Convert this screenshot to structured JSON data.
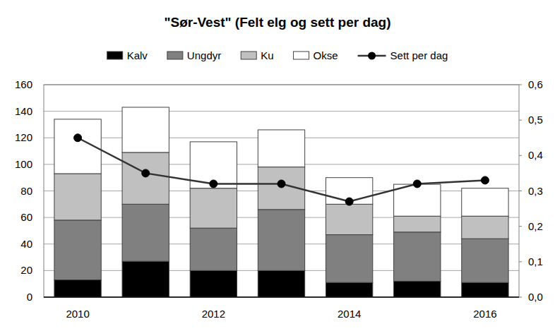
{
  "chart_data": {
    "type": "bar",
    "title": "\"Sør-Vest\" (Felt elg og sett per dag)",
    "stacked": true,
    "grid": true,
    "legend": "top",
    "categories": [
      "2010",
      null,
      "2012",
      null,
      "2014",
      null,
      "2016"
    ],
    "ylim": [
      0,
      160
    ],
    "yticks": [
      0,
      20,
      40,
      60,
      80,
      100,
      120,
      140,
      160
    ],
    "y2lim": [
      0,
      0.6
    ],
    "y2ticks": [
      {
        "value": 0,
        "label": "0,0"
      },
      {
        "value": 0.1,
        "label": "0,1"
      },
      {
        "value": 0.2,
        "label": "0,2"
      },
      {
        "value": 0.3,
        "label": "0,3"
      },
      {
        "value": 0.4,
        "label": "0,4"
      },
      {
        "value": 0.5,
        "label": "0,5"
      },
      {
        "value": 0.6,
        "label": "0,6"
      }
    ],
    "series": [
      {
        "name": "Kalv",
        "type": "bar",
        "color": "#000000",
        "values": [
          13,
          27,
          20,
          20,
          11,
          12,
          11
        ]
      },
      {
        "name": "Ungdyr",
        "type": "bar",
        "color": "#808080",
        "values": [
          45,
          43,
          32,
          46,
          36,
          37,
          33
        ]
      },
      {
        "name": "Ku",
        "type": "bar",
        "color": "#c0c0c0",
        "values": [
          35,
          39,
          30,
          32,
          23,
          12,
          17
        ]
      },
      {
        "name": "Okse",
        "type": "bar",
        "color": "#ffffff",
        "values": [
          41,
          34,
          35,
          28,
          20,
          24,
          21
        ]
      },
      {
        "name": "Sett per dag",
        "type": "line",
        "axis": "y2",
        "color": "#333333",
        "marker": "circle",
        "line_style": "solid",
        "values": [
          0.45,
          0.35,
          0.32,
          0.32,
          0.27,
          0.32,
          0.33
        ]
      }
    ]
  }
}
